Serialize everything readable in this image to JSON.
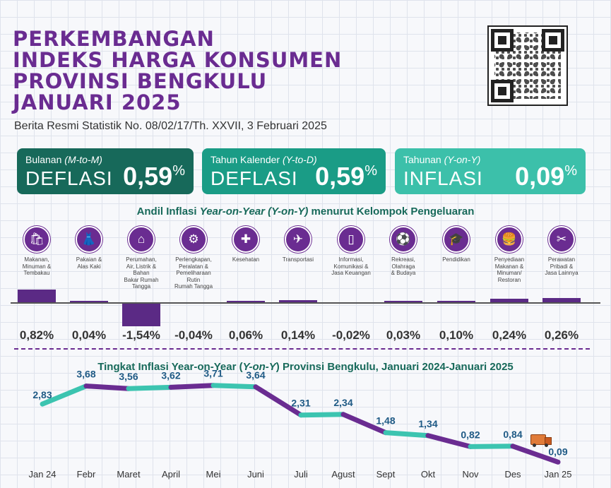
{
  "header": {
    "title_lines": [
      "PERKEMBANGAN",
      "INDEKS HARGA KONSUMEN",
      "PROVINSI BENGKULU",
      "JANUARI 2025"
    ],
    "subtitle": "Berita Resmi Statistik No. 08/02/17/Th. XXVII, 3 Februari 2025"
  },
  "cards": [
    {
      "label": "Bulanan",
      "label_em": "(M-to-M)",
      "kind": "DEFLASI",
      "value": "0,59",
      "unit": "%",
      "color": "#17695a"
    },
    {
      "label": "Tahun Kalender",
      "label_em": "(Y-to-D)",
      "kind": "DEFLASI",
      "value": "0,59",
      "unit": "%",
      "color": "#1a9c86"
    },
    {
      "label": "Tahunan",
      "label_em": "(Y-on-Y)",
      "kind": "INFLASI",
      "value": "0,09",
      "unit": "%",
      "color": "#3cc0aa"
    }
  ],
  "colors": {
    "purple": "#6a2c91",
    "bar": "#5b2a85",
    "teal": "#3cc4b0",
    "title_teal": "#17695a",
    "label_blue": "#1f5a85"
  },
  "andil": {
    "title_pre": "Andil Inflasi ",
    "title_em": "Year-on-Year (Y-on-Y)",
    "title_post": " menurut Kelompok Pengeluaran"
  },
  "line_chart": {
    "title_pre": "Tingkat Inflasi Year-on-Year (",
    "title_em": "Y-on-Y",
    "title_post": ") Provinsi Bengkulu, Januari 2024-Januari 2025"
  },
  "chart_data": [
    {
      "type": "bar",
      "title": "Andil Inflasi Year-on-Year (Y-on-Y) menurut Kelompok Pengeluaran",
      "categories": [
        {
          "label": "Makanan,\nMinuman &\nTembakau",
          "icon": "grocery-bag-icon",
          "glyph": "🛍"
        },
        {
          "label": "Pakaian &\nAlas Kaki",
          "icon": "dress-icon",
          "glyph": "👗"
        },
        {
          "label": "Perumahan,\nAir, Listrik &\nBahan\nBakar Rumah\nTangga",
          "icon": "house-icon",
          "glyph": "⌂"
        },
        {
          "label": "Perlengkapan,\nPeralatan &\nPemeliharaan\nRutin\nRumah Tangga",
          "icon": "appliance-icon",
          "glyph": "⚙"
        },
        {
          "label": "Kesehatan",
          "icon": "first-aid-kit-icon",
          "glyph": "✚"
        },
        {
          "label": "Transportasi",
          "icon": "airplane-icon",
          "glyph": "✈"
        },
        {
          "label": "Informasi,\nKomunikasi &\nJasa Keuangan",
          "icon": "smartphone-icon",
          "glyph": "▯"
        },
        {
          "label": "Rekreasi,\nOlahraga\n& Budaya",
          "icon": "football-player-icon",
          "glyph": "⚽"
        },
        {
          "label": "Pendidikan",
          "icon": "graduation-cap-icon",
          "glyph": "🎓"
        },
        {
          "label": "Penyediaan\nMakanan &\nMinuman/\nRestoran",
          "icon": "burger-drink-icon",
          "glyph": "🍔"
        },
        {
          "label": "Perawatan\nPribadi &\nJasa Lainnya",
          "icon": "scissors-comb-icon",
          "glyph": "✂"
        }
      ],
      "values": [
        0.82,
        0.04,
        -1.54,
        -0.04,
        0.06,
        0.14,
        -0.02,
        0.03,
        0.1,
        0.24,
        0.26
      ],
      "value_labels": [
        "0,82%",
        "0,04%",
        "-1,54%",
        "-0,04%",
        "0,06%",
        "0,14%",
        "-0,02%",
        "0,03%",
        "0,10%",
        "0,24%",
        "0,26%"
      ]
    },
    {
      "type": "line",
      "title": "Tingkat Inflasi Year-on-Year (Y-on-Y) Provinsi Bengkulu, Januari 2024-Januari 2025",
      "x": [
        "Jan 24",
        "Febr",
        "Maret",
        "April",
        "Mei",
        "Juni",
        "Juli",
        "Agust",
        "Sept",
        "Okt",
        "Nov",
        "Des",
        "Jan 25"
      ],
      "y": [
        2.83,
        3.68,
        3.56,
        3.62,
        3.71,
        3.64,
        2.31,
        2.34,
        1.48,
        1.34,
        0.82,
        0.84,
        0.09
      ],
      "y_labels": [
        "2,83",
        "3,68",
        "3,56",
        "3,62",
        "3,71",
        "3,64",
        "2,31",
        "2,34",
        "1,48",
        "1,34",
        "0,82",
        "0,84",
        "0,09"
      ],
      "truck_icon": "delivery-truck-icon"
    }
  ]
}
